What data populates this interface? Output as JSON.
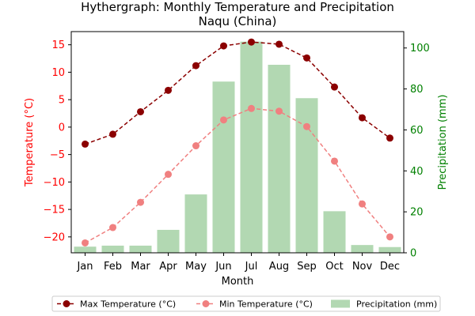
{
  "chart_data": {
    "type": "bar+line",
    "title": "Hythergraph: Monthly Temperature and Precipitation",
    "subtitle": "Naqu (China)",
    "xlabel": "Month",
    "ylabel_left": "Temperature (°C)",
    "ylabel_right": "Precipitation (mm)",
    "categories": [
      "Jan",
      "Feb",
      "Mar",
      "Apr",
      "May",
      "Jun",
      "Jul",
      "Aug",
      "Sep",
      "Oct",
      "Nov",
      "Dec"
    ],
    "ylim_left": [
      -22.9,
      17.4
    ],
    "ylim_right": [
      0,
      108
    ],
    "yticks_left": [
      -20,
      -15,
      -10,
      -5,
      0,
      5,
      10,
      15
    ],
    "ytick_labels_left": [
      "−20",
      "−15",
      "−10",
      "−5",
      "0",
      "5",
      "10",
      "15"
    ],
    "yticks_right": [
      0,
      20,
      40,
      60,
      80,
      100
    ],
    "ytick_labels_right": [
      "0",
      "20",
      "40",
      "60",
      "80",
      "100"
    ],
    "series": [
      {
        "name": "Max Temperature (°C)",
        "type": "line",
        "axis": "left",
        "color": "#8b0000",
        "values": [
          -3.1,
          -1.3,
          2.8,
          6.7,
          11.2,
          14.8,
          15.5,
          15.1,
          12.6,
          7.3,
          1.7,
          -2.0
        ]
      },
      {
        "name": "Min Temperature (°C)",
        "type": "line",
        "axis": "left",
        "color": "#f08080",
        "values": [
          -21.1,
          -18.3,
          -13.7,
          -8.6,
          -3.4,
          1.3,
          3.4,
          2.9,
          0.1,
          -6.2,
          -14.0,
          -20.0
        ]
      },
      {
        "name": "Precipitation (mm)",
        "type": "bar",
        "axis": "right",
        "color": "#b2d8b2",
        "values": [
          3.0,
          3.5,
          3.5,
          11.2,
          28.5,
          83.6,
          103.1,
          91.8,
          75.5,
          20.3,
          3.8,
          2.8
        ]
      }
    ],
    "left_axis_color": "#ff0000",
    "right_axis_color": "#008000",
    "grid": false,
    "legend_position": "bottom-center"
  }
}
